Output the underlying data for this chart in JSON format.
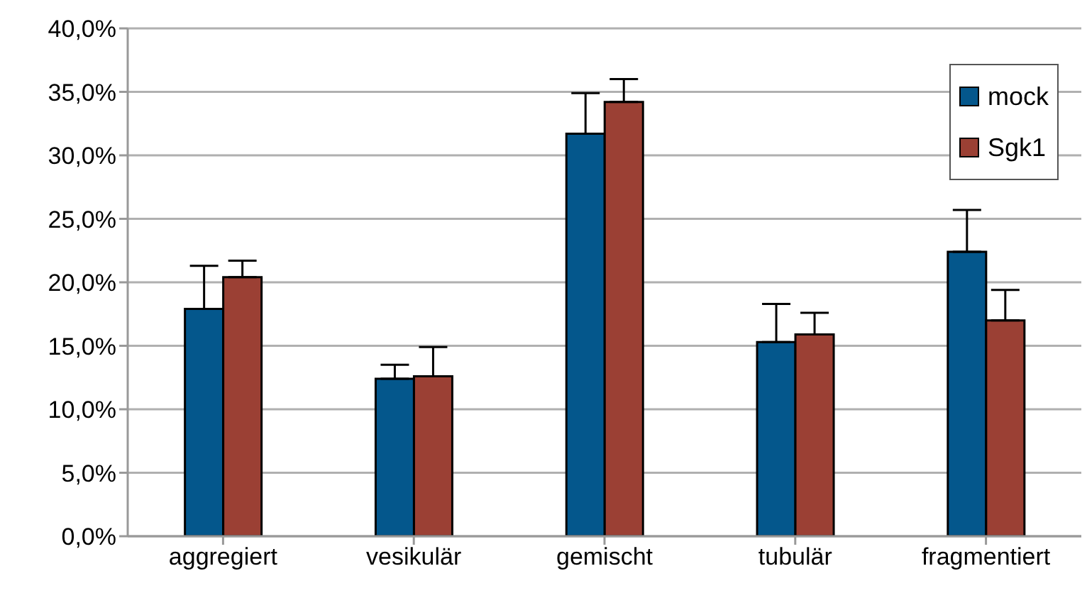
{
  "chart_data": {
    "type": "bar",
    "categories": [
      "aggregiert",
      "vesikulär",
      "gemischt",
      "tubulär",
      "fragmentiert"
    ],
    "series": [
      {
        "name": "mock",
        "color": "#04578c",
        "values": [
          17.9,
          12.4,
          31.7,
          15.3,
          22.4
        ],
        "errors": [
          [
            17.9,
            21.3
          ],
          [
            12.4,
            13.5
          ],
          [
            31.7,
            34.9
          ],
          [
            15.3,
            18.3
          ],
          [
            22.4,
            25.7
          ]
        ]
      },
      {
        "name": "Sgk1",
        "color": "#9b4034",
        "values": [
          20.4,
          12.6,
          34.2,
          15.9,
          17.0
        ],
        "errors": [
          [
            20.4,
            21.7
          ],
          [
            12.6,
            14.9
          ],
          [
            34.2,
            36.0
          ],
          [
            15.9,
            17.6
          ],
          [
            17.0,
            19.4
          ]
        ]
      }
    ],
    "ylim": [
      0,
      40
    ],
    "yticks": [
      {
        "value": 0,
        "label": "0,0%"
      },
      {
        "value": 5,
        "label": "5,0%"
      },
      {
        "value": 10,
        "label": "10,0%"
      },
      {
        "value": 15,
        "label": "15,0%"
      },
      {
        "value": 20,
        "label": "20,0%"
      },
      {
        "value": 25,
        "label": "25,0%"
      },
      {
        "value": 30,
        "label": "30,0%"
      },
      {
        "value": 35,
        "label": "35,0%"
      },
      {
        "value": 40,
        "label": "40,0%"
      }
    ],
    "grid": "y",
    "legend": "top right"
  }
}
